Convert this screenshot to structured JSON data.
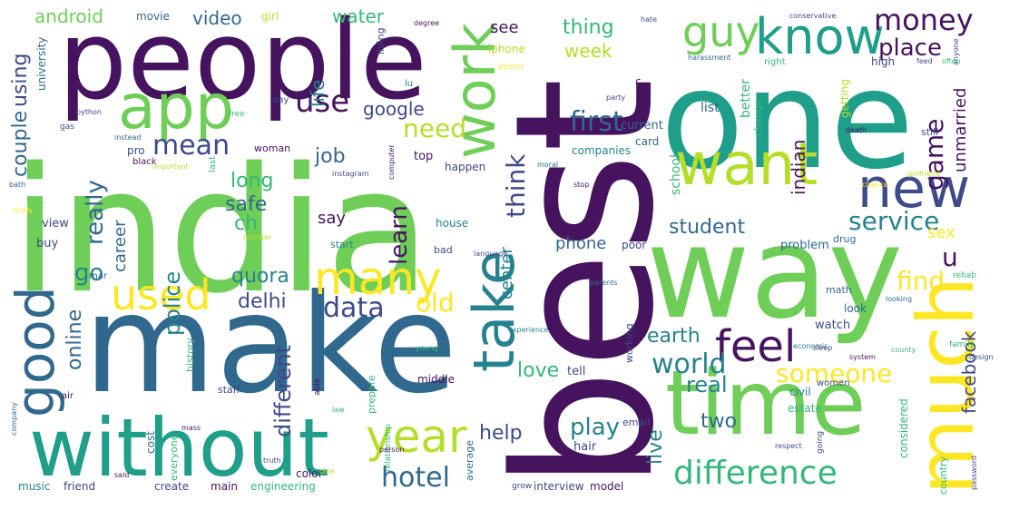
{
  "palette": {
    "dark_purple": "#46135f",
    "indigo": "#3e4a89",
    "blue": "#31688e",
    "teal": "#26828e",
    "green": "#1f9e89",
    "mint": "#35b779",
    "lime": "#6ece58",
    "yellow_green": "#b5de2b",
    "yellow": "#fde725"
  },
  "words": [
    {
      "text": "india",
      "color": "#6ece58"
    },
    {
      "text": "best",
      "color": "#46135f"
    },
    {
      "text": "make",
      "color": "#31688e"
    },
    {
      "text": "people",
      "color": "#46135f"
    },
    {
      "text": "one",
      "color": "#1f9e89"
    },
    {
      "text": "way",
      "color": "#6ece58"
    },
    {
      "text": "without",
      "color": "#1f9e89"
    },
    {
      "text": "time",
      "color": "#6ece58"
    },
    {
      "text": "much",
      "color": "#fde725"
    },
    {
      "text": "app",
      "color": "#6ece58"
    },
    {
      "text": "work",
      "color": "#6ece58"
    },
    {
      "text": "want",
      "color": "#b5de2b"
    },
    {
      "text": "know",
      "color": "#1f9e89"
    },
    {
      "text": "new",
      "color": "#3e4a89"
    },
    {
      "text": "guy",
      "color": "#6ece58"
    },
    {
      "text": "money",
      "color": "#46135f"
    },
    {
      "text": "good",
      "color": "#31688e"
    },
    {
      "text": "take",
      "color": "#26828e"
    },
    {
      "text": "used",
      "color": "#fde725"
    },
    {
      "text": "many",
      "color": "#fde725"
    },
    {
      "text": "feel",
      "color": "#46135f"
    },
    {
      "text": "year",
      "color": "#b5de2b"
    },
    {
      "text": "difference",
      "color": "#35b779"
    },
    {
      "text": "use",
      "color": "#46135f"
    },
    {
      "text": "first",
      "color": "#31688e"
    },
    {
      "text": "mean",
      "color": "#3e4a89"
    },
    {
      "text": "data",
      "color": "#3e4a89"
    },
    {
      "text": "world",
      "color": "#26828e"
    },
    {
      "text": "someone",
      "color": "#fde725"
    },
    {
      "text": "service",
      "color": "#26828e"
    },
    {
      "text": "hotel",
      "color": "#31688e"
    },
    {
      "text": "think",
      "color": "#3e4a89"
    },
    {
      "text": "learn",
      "color": "#46135f"
    },
    {
      "text": "need",
      "color": "#b5de2b"
    },
    {
      "text": "old",
      "color": "#fde725"
    },
    {
      "text": "game",
      "color": "#46135f"
    },
    {
      "text": "place",
      "color": "#46135f"
    },
    {
      "text": "student",
      "color": "#31688e"
    },
    {
      "text": "find",
      "color": "#fde725"
    },
    {
      "text": "u",
      "color": "#46135f"
    },
    {
      "text": "facebook",
      "color": "#3e4a89"
    },
    {
      "text": "earth",
      "color": "#26828e"
    },
    {
      "text": "real",
      "color": "#26828e"
    },
    {
      "text": "two",
      "color": "#31688e"
    },
    {
      "text": "play",
      "color": "#26828e"
    },
    {
      "text": "help",
      "color": "#3e4a89"
    },
    {
      "text": "love",
      "color": "#35b779"
    },
    {
      "text": "live",
      "color": "#26828e"
    },
    {
      "text": "different",
      "color": "#3e4a89"
    },
    {
      "text": "online",
      "color": "#31688e"
    },
    {
      "text": "police",
      "color": "#26828e"
    },
    {
      "text": "quora",
      "color": "#26828e"
    },
    {
      "text": "delhi",
      "color": "#3e4a89"
    },
    {
      "text": "go",
      "color": "#26828e"
    },
    {
      "text": "really",
      "color": "#31688e"
    },
    {
      "text": "career",
      "color": "#31688e"
    },
    {
      "text": "safe",
      "color": "#31688e"
    },
    {
      "text": "job",
      "color": "#31688e"
    },
    {
      "text": "long",
      "color": "#35b779"
    },
    {
      "text": "ch",
      "color": "#35b779"
    },
    {
      "text": "say",
      "color": "#46135f"
    },
    {
      "text": "couple",
      "color": "#31688e"
    },
    {
      "text": "using",
      "color": "#3e4a89"
    },
    {
      "text": "android",
      "color": "#6ece58"
    },
    {
      "text": "video",
      "color": "#31688e"
    },
    {
      "text": "life",
      "color": "#26828e"
    },
    {
      "text": "water",
      "color": "#35b779"
    },
    {
      "text": "see",
      "color": "#46135f"
    },
    {
      "text": "thing",
      "color": "#35b779"
    },
    {
      "text": "week",
      "color": "#b5de2b"
    },
    {
      "text": "google",
      "color": "#3e4a89"
    },
    {
      "text": "center",
      "color": "#26828e"
    },
    {
      "text": "phone",
      "color": "#31688e"
    },
    {
      "text": "indian",
      "color": "#46135f"
    },
    {
      "text": "unmarried",
      "color": "#46135f"
    },
    {
      "text": "sex",
      "color": "#fde725"
    },
    {
      "text": "movie",
      "color": "#31688e"
    },
    {
      "text": "girl",
      "color": "#b5de2b"
    },
    {
      "text": "university",
      "color": "#31688e"
    },
    {
      "text": "iphone",
      "color": "#b5de2b"
    },
    {
      "text": "living",
      "color": "#3e4a89"
    },
    {
      "text": "better",
      "color": "#35b779"
    },
    {
      "text": "current",
      "color": "#31688e"
    },
    {
      "text": "list",
      "color": "#31688e"
    },
    {
      "text": "school",
      "color": "#35b779"
    },
    {
      "text": "problem",
      "color": "#31688e"
    },
    {
      "text": "house",
      "color": "#26828e"
    },
    {
      "text": "top",
      "color": "#46135f"
    },
    {
      "text": "happen",
      "color": "#3e4a89"
    },
    {
      "text": "companies",
      "color": "#26828e"
    },
    {
      "text": "card",
      "color": "#31688e"
    },
    {
      "text": "pro",
      "color": "#3e4a89"
    },
    {
      "text": "woman",
      "color": "#46135f"
    },
    {
      "text": "view",
      "color": "#3e4a89"
    },
    {
      "text": "buy",
      "color": "#3e4a89"
    },
    {
      "text": "start",
      "color": "#26828e"
    },
    {
      "text": "bad",
      "color": "#3e4a89"
    },
    {
      "text": "poor",
      "color": "#3e4a89"
    },
    {
      "text": "drug",
      "color": "#31688e"
    },
    {
      "text": "math",
      "color": "#31688e"
    },
    {
      "text": "look",
      "color": "#31688e"
    },
    {
      "text": "watch",
      "color": "#3e4a89"
    },
    {
      "text": "civil",
      "color": "#26828e"
    },
    {
      "text": "women",
      "color": "#3e4a89"
    },
    {
      "text": "considered",
      "color": "#35b779"
    },
    {
      "text": "country",
      "color": "#35b779"
    },
    {
      "text": "tell",
      "color": "#3e4a89"
    },
    {
      "text": "middle",
      "color": "#46135f"
    },
    {
      "text": "prepare",
      "color": "#35b779"
    },
    {
      "text": "history",
      "color": "#35b779"
    },
    {
      "text": "working",
      "color": "#3e4a89"
    },
    {
      "text": "estate",
      "color": "#35b779"
    },
    {
      "text": "color",
      "color": "#46135f"
    },
    {
      "text": "create",
      "color": "#3e4a89"
    },
    {
      "text": "main",
      "color": "#46135f"
    },
    {
      "text": "engineering",
      "color": "#35b779"
    },
    {
      "text": "average",
      "color": "#31688e"
    },
    {
      "text": "interview",
      "color": "#3e4a89"
    },
    {
      "text": "model",
      "color": "#46135f"
    },
    {
      "text": "email",
      "color": "#3e4a89"
    },
    {
      "text": "hair",
      "color": "#3e4a89"
    },
    {
      "text": "music",
      "color": "#26828e"
    },
    {
      "text": "friend",
      "color": "#3e4a89"
    },
    {
      "text": "cost",
      "color": "#31688e"
    },
    {
      "text": "everyone",
      "color": "#35b779"
    },
    {
      "text": "staff",
      "color": "#3e4a89"
    },
    {
      "text": "able",
      "color": "#46135f"
    },
    {
      "text": "relationship",
      "color": "#35b779"
    },
    {
      "text": "still",
      "color": "#3e4a89"
    },
    {
      "text": "getting",
      "color": "#b5de2b"
    },
    {
      "text": "high",
      "color": "#3e4a89"
    },
    {
      "text": "change",
      "color": "#35b779"
    },
    {
      "text": "right",
      "color": "#35b779"
    },
    {
      "text": "day",
      "color": "#3e4a89"
    },
    {
      "text": "free",
      "color": "#35b779"
    },
    {
      "text": "python",
      "color": "#3e4a89"
    },
    {
      "text": "instead",
      "color": "#31688e"
    },
    {
      "text": "last",
      "color": "#35b779"
    },
    {
      "text": "black",
      "color": "#46135f"
    },
    {
      "text": "important",
      "color": "#b5de2b"
    },
    {
      "text": "moral",
      "color": "#31688e"
    },
    {
      "text": "party",
      "color": "#3e4a89"
    },
    {
      "text": "harassment",
      "color": "#31688e"
    },
    {
      "text": "conservative",
      "color": "#3e4a89"
    },
    {
      "text": "degree",
      "color": "#46135f"
    },
    {
      "text": "alcohol",
      "color": "#fde725"
    },
    {
      "text": "girlfriend",
      "color": "#b5de2b"
    },
    {
      "text": "death",
      "color": "#46135f"
    },
    {
      "text": "chance",
      "color": "#fde725"
    },
    {
      "text": "language",
      "color": "#3e4a89"
    },
    {
      "text": "rehab",
      "color": "#35b779"
    },
    {
      "text": "looking",
      "color": "#31688e"
    },
    {
      "text": "family",
      "color": "#35b779"
    },
    {
      "text": "design",
      "color": "#3e4a89"
    },
    {
      "text": "password",
      "color": "#3e4a89"
    },
    {
      "text": "county",
      "color": "#35b779"
    },
    {
      "text": "system",
      "color": "#46135f"
    },
    {
      "text": "economic",
      "color": "#26828e"
    },
    {
      "text": "respect",
      "color": "#3e4a89"
    },
    {
      "text": "going",
      "color": "#3e4a89"
    },
    {
      "text": "sleep",
      "color": "#3e4a89"
    },
    {
      "text": "young",
      "color": "#35b779"
    },
    {
      "text": "experience",
      "color": "#26828e"
    },
    {
      "text": "parents",
      "color": "#31688e"
    },
    {
      "text": "study",
      "color": "#fde725"
    },
    {
      "text": "instagram",
      "color": "#3e4a89"
    },
    {
      "text": "computer",
      "color": "#46135f"
    },
    {
      "text": "anyone",
      "color": "#3e4a89"
    },
    {
      "text": "often",
      "color": "#35b779"
    },
    {
      "text": "hate",
      "color": "#3e4a89"
    },
    {
      "text": "feed",
      "color": "#3e4a89"
    },
    {
      "text": "stop",
      "color": "#46135f"
    },
    {
      "text": "number",
      "color": "#b5de2b"
    },
    {
      "text": "person",
      "color": "#46135f"
    },
    {
      "text": "truth",
      "color": "#3e4a89"
    },
    {
      "text": "law",
      "color": "#35b779"
    },
    {
      "text": "said",
      "color": "#46135f"
    },
    {
      "text": "bike",
      "color": "#b5de2b"
    },
    {
      "text": "grow",
      "color": "#3e4a89"
    },
    {
      "text": "company",
      "color": "#31688e"
    },
    {
      "text": "mar",
      "color": "#31688e"
    },
    {
      "text": "air",
      "color": "#46135f"
    },
    {
      "text": "gas",
      "color": "#3e4a89"
    },
    {
      "text": "mass",
      "color": "#46135f"
    },
    {
      "text": "bath",
      "color": "#31688e"
    },
    {
      "text": "c",
      "color": "#46135f"
    },
    {
      "text": "lu",
      "color": "#26828e"
    }
  ]
}
